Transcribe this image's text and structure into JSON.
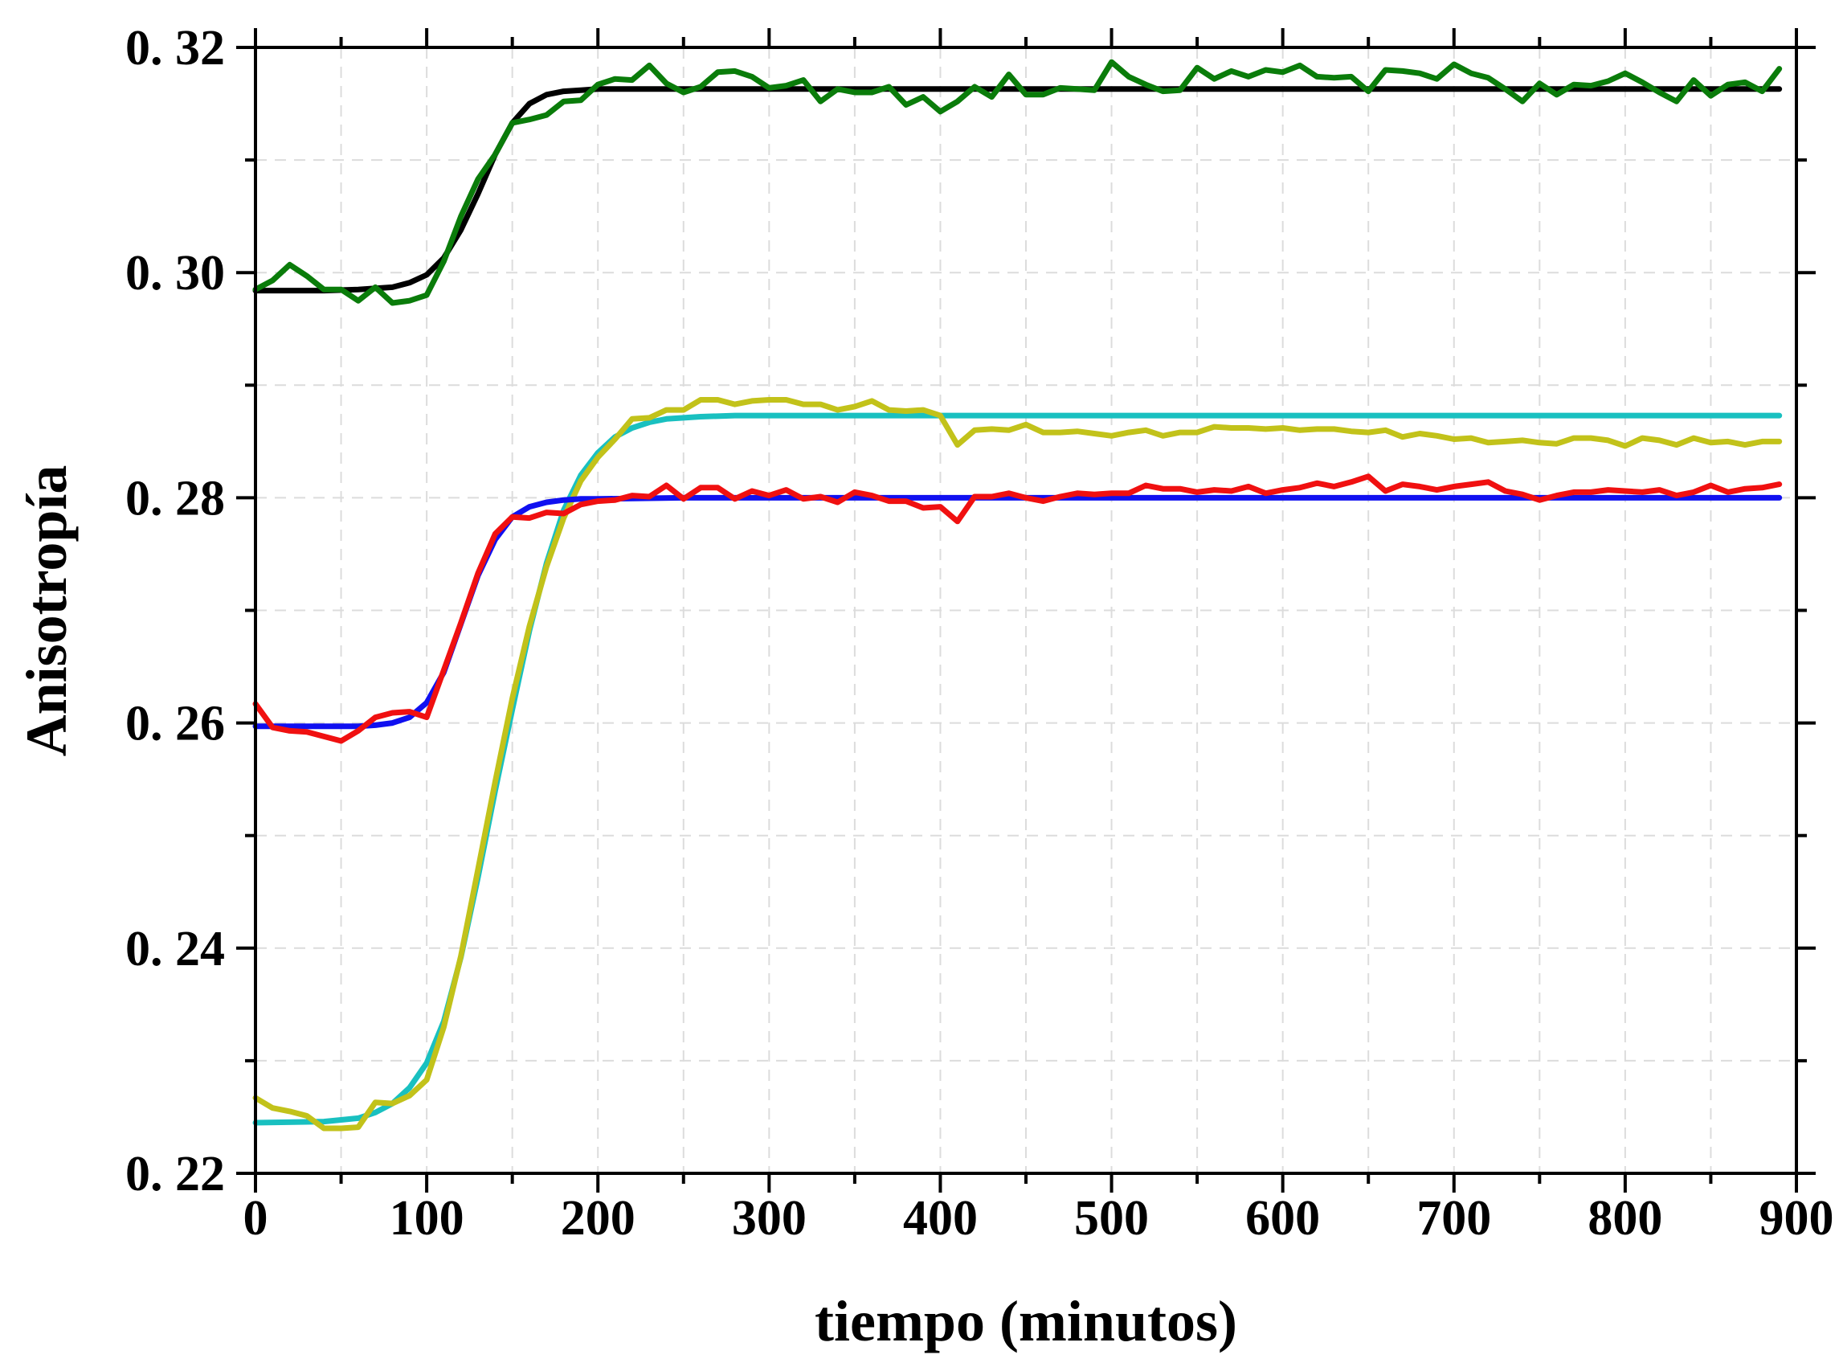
{
  "chart_data": {
    "type": "line",
    "xlabel": "tiempo (minutos)",
    "ylabel": "Anisotropía",
    "xlim": [
      0,
      900
    ],
    "ylim": [
      0.22,
      0.32
    ],
    "grid": true,
    "x_ticks": [
      {
        "value": 0,
        "label": "0"
      },
      {
        "value": 100,
        "label": "100"
      },
      {
        "value": 200,
        "label": "200"
      },
      {
        "value": 300,
        "label": "300"
      },
      {
        "value": 400,
        "label": "400"
      },
      {
        "value": 500,
        "label": "500"
      },
      {
        "value": 600,
        "label": "600"
      },
      {
        "value": 700,
        "label": "700"
      },
      {
        "value": 800,
        "label": "800"
      },
      {
        "value": 900,
        "label": "900"
      }
    ],
    "y_ticks": [
      {
        "value": 0.22,
        "label": "0. 22"
      },
      {
        "value": 0.24,
        "label": "0. 24"
      },
      {
        "value": 0.26,
        "label": "0. 26"
      },
      {
        "value": 0.28,
        "label": "0. 28"
      },
      {
        "value": 0.3,
        "label": "0. 30"
      },
      {
        "value": 0.32,
        "label": "0. 32"
      }
    ],
    "series": [
      {
        "color": "#000000",
        "x": [
          0,
          40,
          60,
          80,
          90,
          100,
          110,
          120,
          130,
          140,
          150,
          160,
          170,
          180,
          190,
          200,
          220,
          300,
          400,
          500,
          600,
          700,
          800,
          890
        ],
        "y": [
          0.2984,
          0.2984,
          0.2985,
          0.2987,
          0.2991,
          0.2998,
          0.3013,
          0.3038,
          0.307,
          0.3105,
          0.3133,
          0.315,
          0.3158,
          0.3161,
          0.3162,
          0.3163,
          0.3163,
          0.3163,
          0.3163,
          0.3163,
          0.3163,
          0.3163,
          0.3163,
          0.3163
        ]
      },
      {
        "color": "#0a7c0a",
        "x": [
          0,
          10,
          20,
          30,
          40,
          50,
          60,
          70,
          80,
          90,
          100,
          110,
          120,
          130,
          140,
          150,
          160,
          170,
          180,
          190,
          200,
          210,
          220,
          230,
          240,
          250,
          260,
          270,
          280,
          290,
          300,
          310,
          320,
          330,
          340,
          350,
          360,
          370,
          380,
          390,
          400,
          410,
          420,
          430,
          440,
          450,
          460,
          470,
          480,
          490,
          500,
          510,
          520,
          530,
          540,
          550,
          560,
          570,
          580,
          590,
          600,
          610,
          620,
          630,
          640,
          650,
          660,
          670,
          680,
          690,
          700,
          710,
          720,
          730,
          740,
          750,
          760,
          770,
          780,
          790,
          800,
          810,
          820,
          830,
          840,
          850,
          860,
          870,
          880,
          890
        ],
        "y": [
          0.2985,
          0.2993,
          0.3007,
          0.2997,
          0.2985,
          0.2985,
          0.2975,
          0.2987,
          0.2973,
          0.2975,
          0.298,
          0.301,
          0.305,
          0.3083,
          0.3105,
          0.3133,
          0.3136,
          0.314,
          0.3152,
          0.3153,
          0.3167,
          0.3172,
          0.3171,
          0.3184,
          0.3168,
          0.316,
          0.3165,
          0.3178,
          0.3179,
          0.3174,
          0.3164,
          0.3166,
          0.3171,
          0.3152,
          0.3163,
          0.316,
          0.316,
          0.3165,
          0.3149,
          0.3156,
          0.3143,
          0.3152,
          0.3165,
          0.3156,
          0.3176,
          0.3158,
          0.3158,
          0.3164,
          0.3163,
          0.3162,
          0.3187,
          0.3174,
          0.3167,
          0.3161,
          0.3162,
          0.3182,
          0.3172,
          0.3179,
          0.3174,
          0.318,
          0.3178,
          0.3184,
          0.3174,
          0.3173,
          0.3174,
          0.3161,
          0.318,
          0.3179,
          0.3177,
          0.3172,
          0.3185,
          0.3177,
          0.3173,
          0.3163,
          0.3152,
          0.3168,
          0.3158,
          0.3167,
          0.3166,
          0.317,
          0.3177,
          0.3169,
          0.316,
          0.3152,
          0.3171,
          0.3157,
          0.3167,
          0.3169,
          0.3161,
          0.3181
        ]
      },
      {
        "color": "#19c0c0",
        "x": [
          0,
          40,
          60,
          70,
          80,
          90,
          100,
          110,
          120,
          130,
          140,
          150,
          160,
          170,
          180,
          190,
          200,
          210,
          220,
          230,
          240,
          250,
          260,
          280,
          300,
          400,
          500,
          600,
          700,
          800,
          890
        ],
        "y": [
          0.2245,
          0.2246,
          0.2249,
          0.2254,
          0.2262,
          0.2276,
          0.2298,
          0.2335,
          0.2392,
          0.2463,
          0.254,
          0.2612,
          0.2682,
          0.2742,
          0.2789,
          0.282,
          0.284,
          0.2854,
          0.2862,
          0.2867,
          0.287,
          0.2871,
          0.2872,
          0.2873,
          0.2873,
          0.2873,
          0.2873,
          0.2873,
          0.2873,
          0.2873,
          0.2873
        ]
      },
      {
        "color": "#c2c21a",
        "x": [
          0,
          10,
          20,
          30,
          40,
          50,
          60,
          70,
          80,
          90,
          100,
          110,
          120,
          130,
          140,
          150,
          160,
          170,
          180,
          190,
          200,
          210,
          220,
          230,
          240,
          250,
          260,
          270,
          280,
          290,
          300,
          310,
          320,
          330,
          340,
          350,
          360,
          370,
          380,
          390,
          400,
          410,
          420,
          430,
          440,
          450,
          460,
          470,
          480,
          490,
          500,
          510,
          520,
          530,
          540,
          550,
          560,
          570,
          580,
          590,
          600,
          610,
          620,
          630,
          640,
          650,
          660,
          670,
          680,
          690,
          700,
          710,
          720,
          730,
          740,
          750,
          760,
          770,
          780,
          790,
          800,
          810,
          820,
          830,
          840,
          850,
          860,
          870,
          880,
          890
        ],
        "y": [
          0.2267,
          0.2258,
          0.2255,
          0.2251,
          0.224,
          0.224,
          0.2241,
          0.2263,
          0.2262,
          0.2269,
          0.2283,
          0.233,
          0.2393,
          0.247,
          0.2548,
          0.2622,
          0.2686,
          0.2739,
          0.2782,
          0.2815,
          0.2836,
          0.2852,
          0.287,
          0.2871,
          0.2878,
          0.2878,
          0.2887,
          0.2887,
          0.2883,
          0.2886,
          0.2887,
          0.2887,
          0.2883,
          0.2883,
          0.2878,
          0.2881,
          0.2886,
          0.2878,
          0.2877,
          0.2878,
          0.2873,
          0.2847,
          0.286,
          0.2861,
          0.286,
          0.2865,
          0.2858,
          0.2858,
          0.2859,
          0.2857,
          0.2855,
          0.2858,
          0.286,
          0.2855,
          0.2858,
          0.2858,
          0.2863,
          0.2862,
          0.2862,
          0.2861,
          0.2862,
          0.286,
          0.2861,
          0.2861,
          0.2859,
          0.2858,
          0.286,
          0.2854,
          0.2857,
          0.2855,
          0.2852,
          0.2853,
          0.2849,
          0.285,
          0.2851,
          0.2849,
          0.2848,
          0.2853,
          0.2853,
          0.2851,
          0.2846,
          0.2853,
          0.2851,
          0.2847,
          0.2853,
          0.2849,
          0.285,
          0.2847,
          0.285,
          0.285
        ]
      },
      {
        "color": "#1010f0",
        "x": [
          0,
          40,
          60,
          70,
          80,
          90,
          100,
          110,
          120,
          130,
          140,
          150,
          160,
          170,
          180,
          190,
          200,
          250,
          300,
          400,
          500,
          600,
          700,
          800,
          890
        ],
        "y": [
          0.2597,
          0.2597,
          0.2597,
          0.2598,
          0.26,
          0.2605,
          0.2618,
          0.2645,
          0.2688,
          0.2731,
          0.2763,
          0.2783,
          0.2792,
          0.2796,
          0.2798,
          0.2799,
          0.2799,
          0.28,
          0.28,
          0.28,
          0.28,
          0.28,
          0.28,
          0.28,
          0.28
        ]
      },
      {
        "color": "#f01010",
        "x": [
          0,
          10,
          20,
          30,
          40,
          50,
          60,
          70,
          80,
          90,
          100,
          110,
          120,
          130,
          140,
          150,
          160,
          170,
          180,
          190,
          200,
          210,
          220,
          230,
          240,
          250,
          260,
          270,
          280,
          290,
          300,
          310,
          320,
          330,
          340,
          350,
          360,
          370,
          380,
          390,
          400,
          410,
          420,
          430,
          440,
          450,
          460,
          470,
          480,
          490,
          500,
          510,
          520,
          530,
          540,
          550,
          560,
          570,
          580,
          590,
          600,
          610,
          620,
          630,
          640,
          650,
          660,
          670,
          680,
          690,
          700,
          710,
          720,
          730,
          740,
          750,
          760,
          770,
          780,
          790,
          800,
          810,
          820,
          830,
          840,
          850,
          860,
          870,
          880,
          890
        ],
        "y": [
          0.2617,
          0.2596,
          0.2593,
          0.2592,
          0.2588,
          0.2584,
          0.2593,
          0.2605,
          0.2609,
          0.261,
          0.2605,
          0.2647,
          0.2689,
          0.2733,
          0.2768,
          0.2783,
          0.2782,
          0.2787,
          0.2786,
          0.2794,
          0.2797,
          0.2798,
          0.2802,
          0.2801,
          0.2811,
          0.2799,
          0.2809,
          0.2809,
          0.2799,
          0.2806,
          0.2802,
          0.2807,
          0.2799,
          0.2801,
          0.2796,
          0.2805,
          0.2802,
          0.2797,
          0.2797,
          0.2791,
          0.2792,
          0.2779,
          0.2801,
          0.2801,
          0.2804,
          0.28,
          0.2797,
          0.2801,
          0.2804,
          0.2803,
          0.2804,
          0.2804,
          0.2811,
          0.2808,
          0.2808,
          0.2805,
          0.2807,
          0.2806,
          0.281,
          0.2804,
          0.2807,
          0.2809,
          0.2813,
          0.281,
          0.2814,
          0.2819,
          0.2806,
          0.2812,
          0.281,
          0.2807,
          0.281,
          0.2812,
          0.2814,
          0.2806,
          0.2803,
          0.2798,
          0.2802,
          0.2805,
          0.2805,
          0.2807,
          0.2806,
          0.2805,
          0.2807,
          0.2802,
          0.2805,
          0.2811,
          0.2805,
          0.2808,
          0.2809,
          0.2812
        ]
      }
    ]
  }
}
